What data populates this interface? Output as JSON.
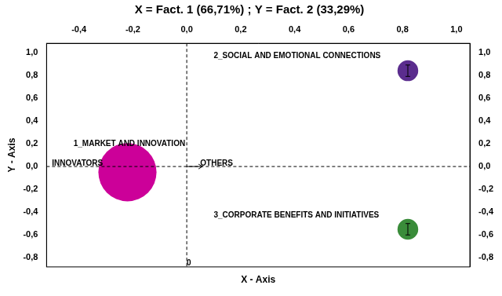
{
  "chart_data": {
    "type": "bubble",
    "title": "X = Fact. 1 (66,71%) ; Y = Fact. 2 (33,29%)",
    "x_label": "X - Axis",
    "y_label": "Y - Axis",
    "xlim": [
      -0.52,
      1.05
    ],
    "ylim": [
      -0.88,
      1.08
    ],
    "xticks": [
      {
        "value": -0.4,
        "label": "-0,4"
      },
      {
        "value": -0.2,
        "label": "-0,2"
      },
      {
        "value": 0.0,
        "label": "0,0"
      },
      {
        "value": 0.2,
        "label": "0,2"
      },
      {
        "value": 0.4,
        "label": "0,4"
      },
      {
        "value": 0.6,
        "label": "0,6"
      },
      {
        "value": 0.8,
        "label": "0,8"
      },
      {
        "value": 1.0,
        "label": "1,0"
      }
    ],
    "yticks": [
      {
        "value": -0.8,
        "label": "-0,8"
      },
      {
        "value": -0.6,
        "label": "-0,6"
      },
      {
        "value": -0.4,
        "label": "-0,4"
      },
      {
        "value": -0.2,
        "label": "-0,2"
      },
      {
        "value": 0.0,
        "label": "0,0"
      },
      {
        "value": 0.2,
        "label": "0,2"
      },
      {
        "value": 0.4,
        "label": "0,4"
      },
      {
        "value": 0.6,
        "label": "0,6"
      },
      {
        "value": 0.8,
        "label": "0,8"
      },
      {
        "value": 1.0,
        "label": "1,0"
      }
    ],
    "y2lim": [
      -0.88,
      1.08
    ],
    "y2ticks": [
      {
        "value": -0.8,
        "label": "-0,8"
      },
      {
        "value": -0.6,
        "label": "-0,6"
      },
      {
        "value": -0.4,
        "label": "-0,4"
      },
      {
        "value": -0.2,
        "label": "-0,2"
      },
      {
        "value": 0.0,
        "label": "0,0"
      },
      {
        "value": 0.2,
        "label": "0,2"
      },
      {
        "value": 0.4,
        "label": "0,4"
      },
      {
        "value": 0.6,
        "label": "0,6"
      },
      {
        "value": 0.8,
        "label": "0,8"
      },
      {
        "value": 1.0,
        "label": "1,0"
      }
    ],
    "series": [
      {
        "color": "#CC0099",
        "x": [
          -0.22
        ],
        "values": [
          -0.05
        ],
        "size": [
          5500
        ],
        "err_y": [
          null
        ]
      },
      {
        "color": "#5B2D8E",
        "x": [
          0.82
        ],
        "values": [
          0.84
        ],
        "size": [
          700
        ],
        "err_y": [
          0.05
        ]
      },
      {
        "color": "#3A8C3A",
        "x": [
          0.82
        ],
        "values": [
          -0.55
        ],
        "size": [
          700
        ],
        "err_y": [
          0.05
        ]
      }
    ],
    "annotations": [
      {
        "text": "1_MARKET AND INNOVATION",
        "x": -0.42,
        "y": 0.2
      },
      {
        "text": "2_SOCIAL AND EMOTIONAL CONNECTIONS",
        "x": 0.1,
        "y": 0.97
      },
      {
        "text": "3_CORPORATE BENEFITS AND INITIATIVES",
        "x": 0.1,
        "y": -0.43
      },
      {
        "text": "INNOVATORS",
        "x": -0.5,
        "y": 0.025
      },
      {
        "text": "OTHERS",
        "x": 0.05,
        "y": 0.025
      },
      {
        "text": "0",
        "x": 0.0,
        "y": -0.845
      }
    ],
    "grid": false
  }
}
